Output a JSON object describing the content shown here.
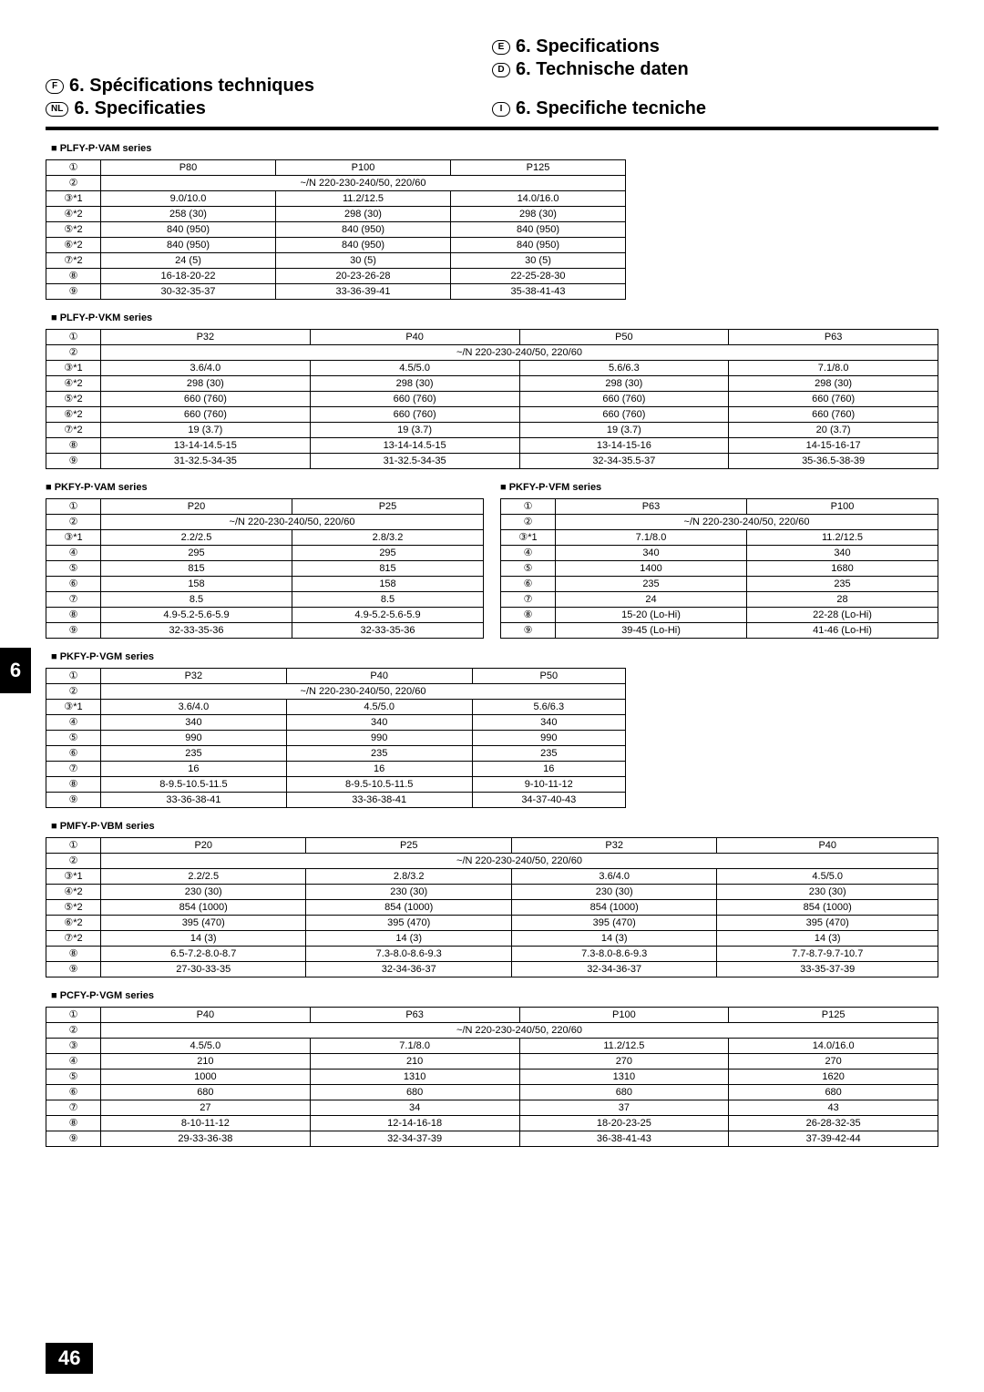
{
  "titles": {
    "e": "6. Specifications",
    "d": "6. Technische daten",
    "f": "6. Spécifications techniques",
    "nl": "6. Specificaties",
    "i": "6. Specifiche tecniche"
  },
  "side_tab": "6",
  "page_num": "46",
  "voltage_string": "~/N 220-230-240/50, 220/60",
  "row_labels_full": [
    "①",
    "②",
    "③*1",
    "④*2",
    "⑤*2",
    "⑥*2",
    "⑦*2",
    "⑧",
    "⑨"
  ],
  "row_labels_plain": [
    "①",
    "②",
    "③*1",
    "④",
    "⑤",
    "⑥",
    "⑦",
    "⑧",
    "⑨"
  ],
  "row_labels_simple": [
    "①",
    "②",
    "③",
    "④",
    "⑤",
    "⑥",
    "⑦",
    "⑧",
    "⑨"
  ],
  "series": {
    "plfy_vam": {
      "name": "PLFY-P·VAM series",
      "cols": [
        "P80",
        "P100",
        "P125"
      ],
      "rows": [
        [
          "9.0/10.0",
          "11.2/12.5",
          "14.0/16.0"
        ],
        [
          "258 (30)",
          "298 (30)",
          "298 (30)"
        ],
        [
          "840 (950)",
          "840 (950)",
          "840 (950)"
        ],
        [
          "840 (950)",
          "840 (950)",
          "840 (950)"
        ],
        [
          "24 (5)",
          "30 (5)",
          "30 (5)"
        ],
        [
          "16-18-20-22",
          "20-23-26-28",
          "22-25-28-30"
        ],
        [
          "30-32-35-37",
          "33-36-39-41",
          "35-38-41-43"
        ]
      ]
    },
    "plfy_vkm": {
      "name": "PLFY-P·VKM series",
      "cols": [
        "P32",
        "P40",
        "P50",
        "P63"
      ],
      "rows": [
        [
          "3.6/4.0",
          "4.5/5.0",
          "5.6/6.3",
          "7.1/8.0"
        ],
        [
          "298 (30)",
          "298 (30)",
          "298 (30)",
          "298 (30)"
        ],
        [
          "660 (760)",
          "660 (760)",
          "660 (760)",
          "660 (760)"
        ],
        [
          "660 (760)",
          "660 (760)",
          "660 (760)",
          "660 (760)"
        ],
        [
          "19 (3.7)",
          "19 (3.7)",
          "19 (3.7)",
          "20 (3.7)"
        ],
        [
          "13-14-14.5-15",
          "13-14-14.5-15",
          "13-14-15-16",
          "14-15-16-17"
        ],
        [
          "31-32.5-34-35",
          "31-32.5-34-35",
          "32-34-35.5-37",
          "35-36.5-38-39"
        ]
      ]
    },
    "pkfy_vam": {
      "name": "PKFY-P·VAM series",
      "cols": [
        "P20",
        "P25"
      ],
      "rows": [
        [
          "2.2/2.5",
          "2.8/3.2"
        ],
        [
          "295",
          "295"
        ],
        [
          "815",
          "815"
        ],
        [
          "158",
          "158"
        ],
        [
          "8.5",
          "8.5"
        ],
        [
          "4.9-5.2-5.6-5.9",
          "4.9-5.2-5.6-5.9"
        ],
        [
          "32-33-35-36",
          "32-33-35-36"
        ]
      ]
    },
    "pkfy_vfm": {
      "name": "PKFY-P·VFM series",
      "cols": [
        "P63",
        "P100"
      ],
      "rows": [
        [
          "7.1/8.0",
          "11.2/12.5"
        ],
        [
          "340",
          "340"
        ],
        [
          "1400",
          "1680"
        ],
        [
          "235",
          "235"
        ],
        [
          "24",
          "28"
        ],
        [
          "15-20 (Lo-Hi)",
          "22-28 (Lo-Hi)"
        ],
        [
          "39-45 (Lo-Hi)",
          "41-46 (Lo-Hi)"
        ]
      ]
    },
    "pkfy_vgm": {
      "name": "PKFY-P·VGM series",
      "cols": [
        "P32",
        "P40",
        "P50"
      ],
      "rows": [
        [
          "3.6/4.0",
          "4.5/5.0",
          "5.6/6.3"
        ],
        [
          "340",
          "340",
          "340"
        ],
        [
          "990",
          "990",
          "990"
        ],
        [
          "235",
          "235",
          "235"
        ],
        [
          "16",
          "16",
          "16"
        ],
        [
          "8-9.5-10.5-11.5",
          "8-9.5-10.5-11.5",
          "9-10-11-12"
        ],
        [
          "33-36-38-41",
          "33-36-38-41",
          "34-37-40-43"
        ]
      ]
    },
    "pmfy_vbm": {
      "name": "PMFY-P·VBM series",
      "cols": [
        "P20",
        "P25",
        "P32",
        "P40"
      ],
      "rows": [
        [
          "2.2/2.5",
          "2.8/3.2",
          "3.6/4.0",
          "4.5/5.0"
        ],
        [
          "230 (30)",
          "230 (30)",
          "230 (30)",
          "230 (30)"
        ],
        [
          "854 (1000)",
          "854 (1000)",
          "854 (1000)",
          "854 (1000)"
        ],
        [
          "395 (470)",
          "395 (470)",
          "395 (470)",
          "395 (470)"
        ],
        [
          "14 (3)",
          "14 (3)",
          "14 (3)",
          "14 (3)"
        ],
        [
          "6.5-7.2-8.0-8.7",
          "7.3-8.0-8.6-9.3",
          "7.3-8.0-8.6-9.3",
          "7.7-8.7-9.7-10.7"
        ],
        [
          "27-30-33-35",
          "32-34-36-37",
          "32-34-36-37",
          "33-35-37-39"
        ]
      ]
    },
    "pcfy_vgm": {
      "name": "PCFY-P·VGM series",
      "cols": [
        "P40",
        "P63",
        "P100",
        "P125"
      ],
      "rows": [
        [
          "4.5/5.0",
          "7.1/8.0",
          "11.2/12.5",
          "14.0/16.0"
        ],
        [
          "210",
          "210",
          "270",
          "270"
        ],
        [
          "1000",
          "1310",
          "1310",
          "1620"
        ],
        [
          "680",
          "680",
          "680",
          "680"
        ],
        [
          "27",
          "34",
          "37",
          "43"
        ],
        [
          "8-10-11-12",
          "12-14-16-18",
          "18-20-23-25",
          "26-28-32-35"
        ],
        [
          "29-33-36-38",
          "32-34-37-39",
          "36-38-41-43",
          "37-39-42-44"
        ]
      ]
    }
  }
}
